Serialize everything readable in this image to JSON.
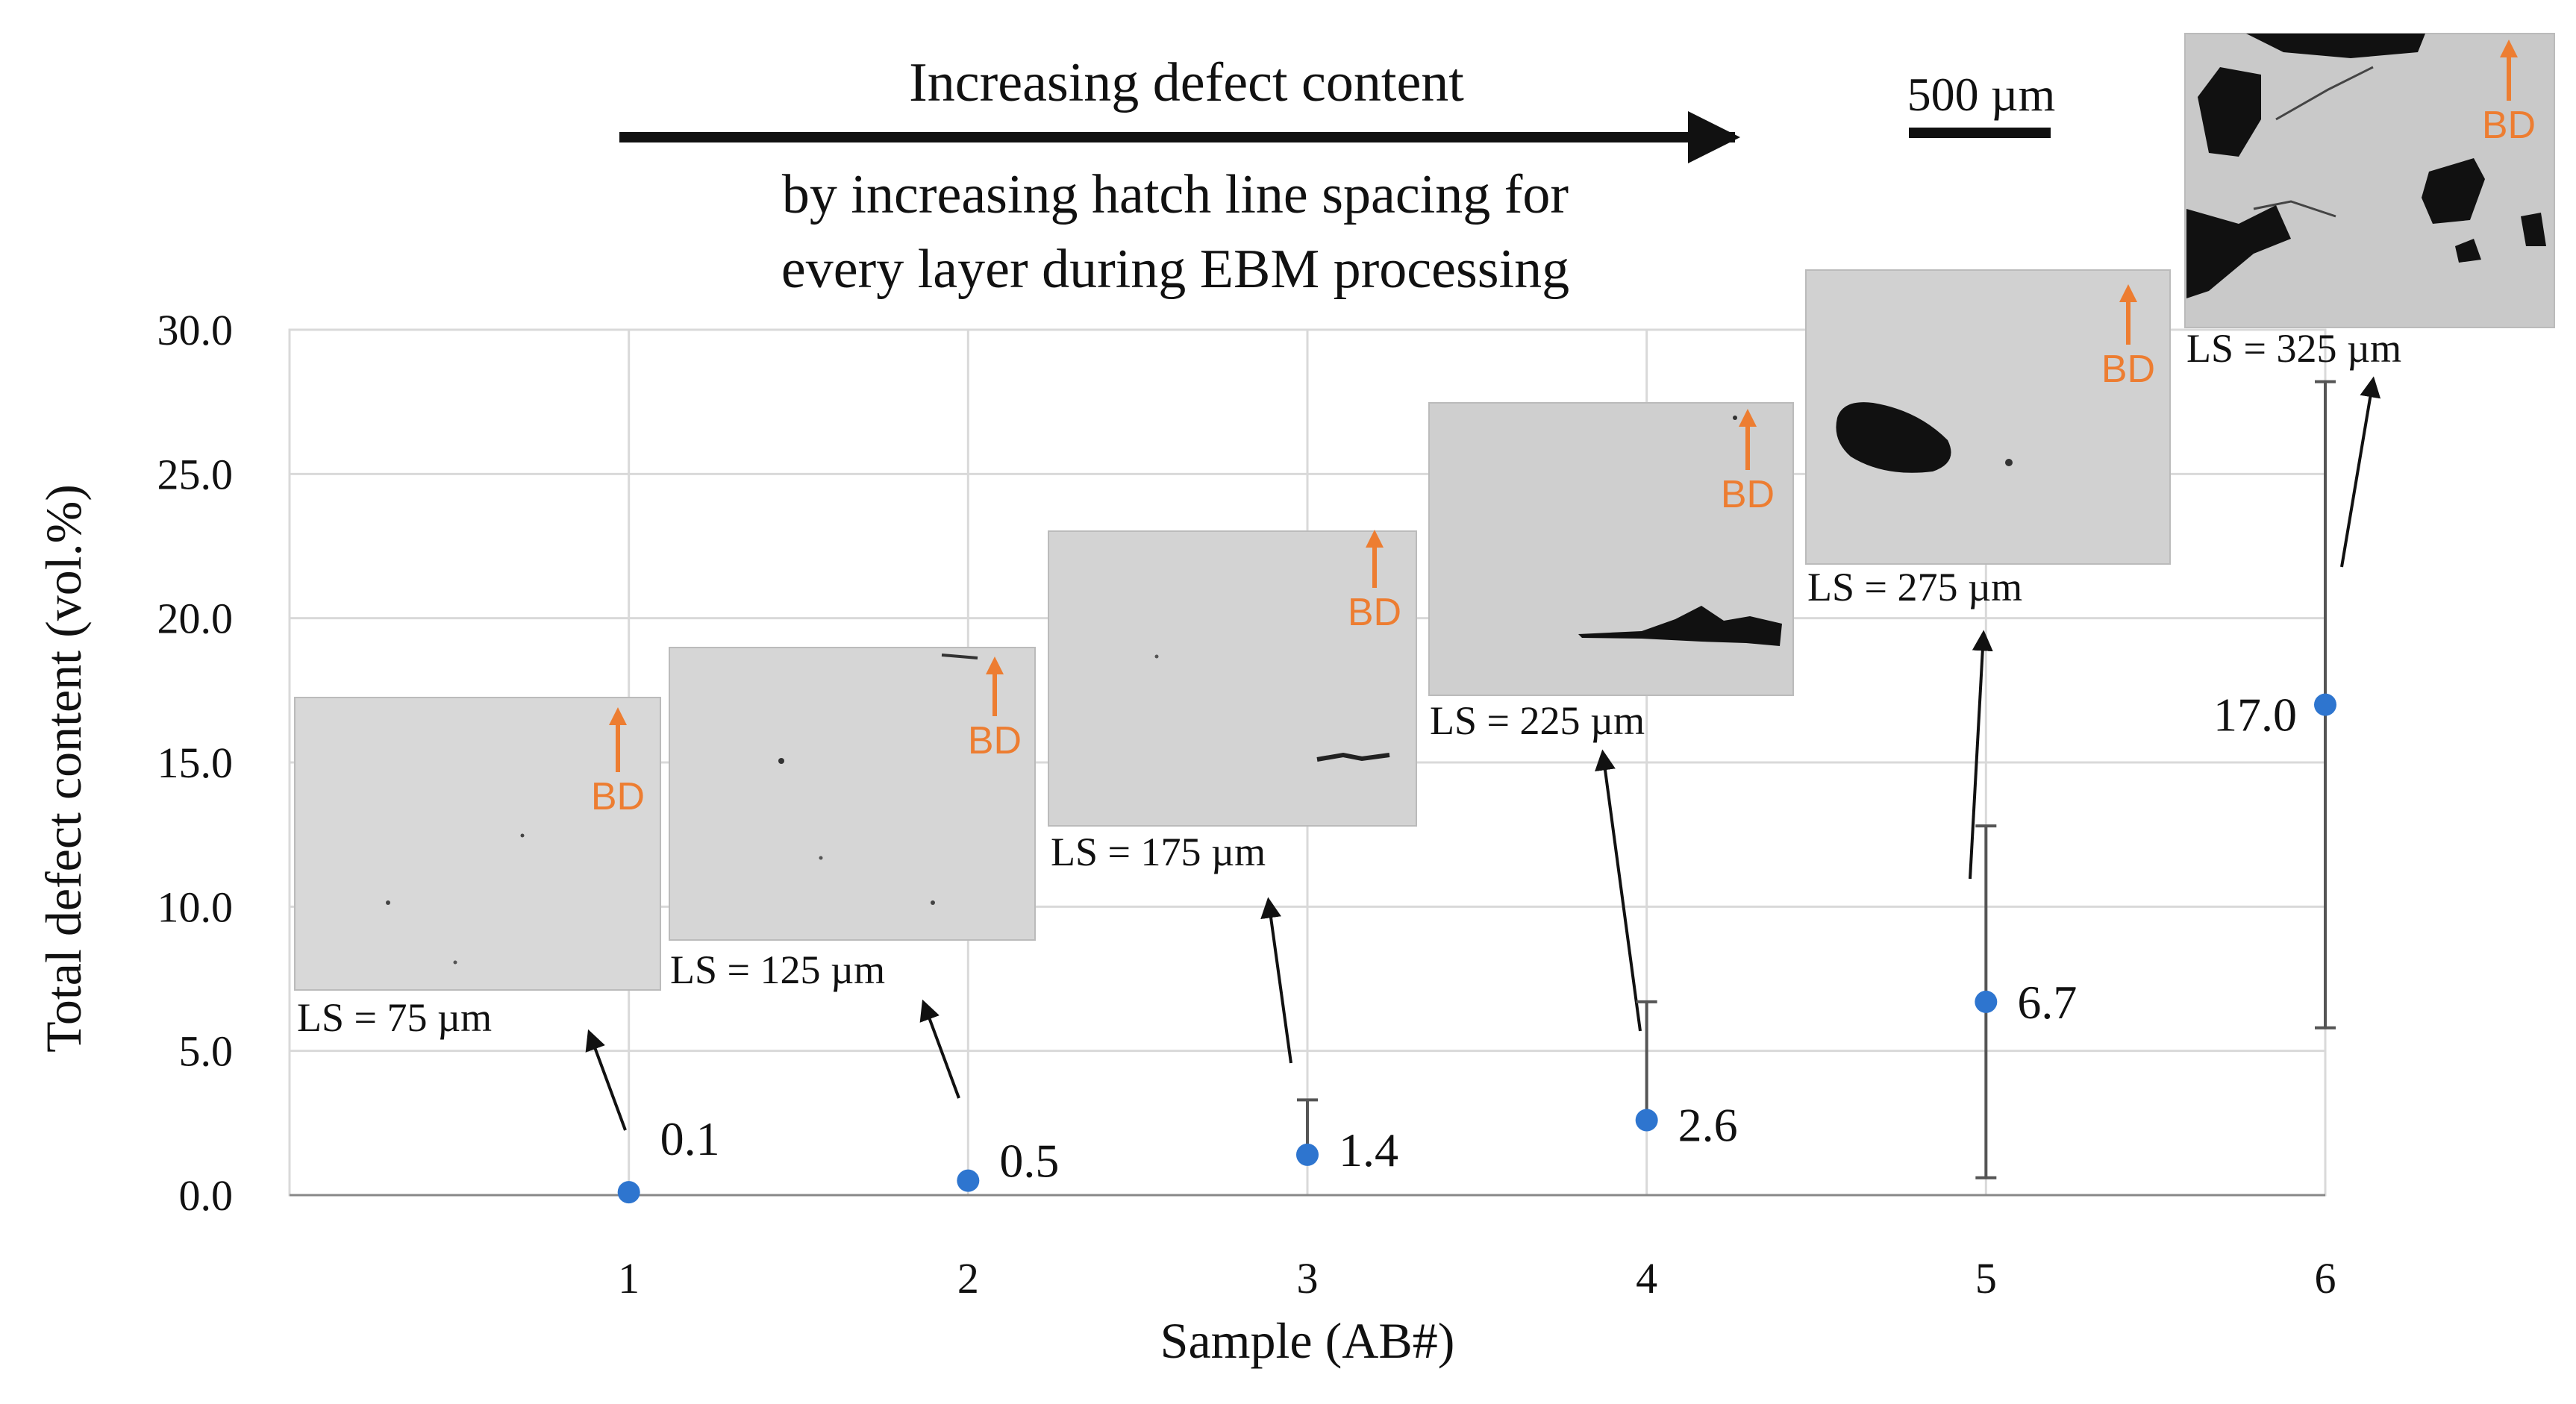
{
  "chart_data": {
    "type": "scatter",
    "title": "",
    "xlabel": "Sample (AB#)",
    "ylabel": "Total defect content (vol.%)",
    "x": [
      1,
      2,
      3,
      4,
      5,
      6
    ],
    "x_tick_labels": [
      "1",
      "2",
      "3",
      "4",
      "5",
      "6"
    ],
    "xlim": [
      0,
      6
    ],
    "ylim": [
      0,
      30
    ],
    "y_tick_labels": [
      "0.0",
      "5.0",
      "10.0",
      "15.0",
      "20.0",
      "25.0",
      "30.0"
    ],
    "grid": true,
    "series": [
      {
        "name": "Total defect content",
        "color": "#2E75CF",
        "values": [
          0.1,
          0.5,
          1.4,
          2.6,
          6.7,
          17.0
        ],
        "value_labels": [
          "0.1",
          "0.5",
          "1.4",
          "2.6",
          "6.7",
          "17.0"
        ],
        "error_low": [
          0.1,
          0.5,
          1.4,
          2.6,
          0.6,
          5.8
        ],
        "error_high": [
          0.1,
          0.5,
          3.3,
          6.7,
          12.8,
          28.2
        ]
      }
    ],
    "annotations": {
      "arrow_header": "Increasing defect content",
      "arrow_subtitle_line1": "by increasing hatch line spacing for",
      "arrow_subtitle_line2": "every layer during EBM processing",
      "scale_bar_label": "500 µm",
      "build_direction_label": "BD",
      "build_direction_color": "#ED7D31",
      "micrograph_labels": [
        "LS = 75 µm",
        "LS = 125 µm",
        "LS = 175 µm",
        "LS = 225 µm",
        "LS = 275 µm",
        "LS = 325 µm"
      ]
    }
  }
}
